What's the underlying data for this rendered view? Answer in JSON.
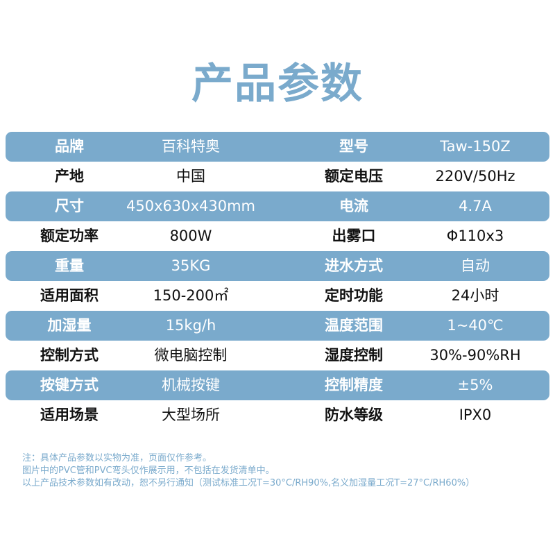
{
  "title": "产品参数",
  "rows": [
    {
      "l1": "品牌",
      "v1": "百科特奥",
      "l2": "型号",
      "v2": "Taw-150Z"
    },
    {
      "l1": "产地",
      "v1": "中国",
      "l2": "额定电压",
      "v2": "220V/50Hz"
    },
    {
      "l1": "尺寸",
      "v1": "450x630x430mm",
      "l2": "电流",
      "v2": "4.7A"
    },
    {
      "l1": "额定功率",
      "v1": "800W",
      "l2": "出雾口",
      "v2": "Φ110x3"
    },
    {
      "l1": "重量",
      "v1": "35KG",
      "l2": "进水方式",
      "v2": "自动"
    },
    {
      "l1": "适用面积",
      "v1": "150-200㎡",
      "l2": "定时功能",
      "v2": "24小时"
    },
    {
      "l1": "加湿量",
      "v1": "15kg/h",
      "l2": "温度范围",
      "v2": "1~40℃"
    },
    {
      "l1": "控制方式",
      "v1": "微电脑控制",
      "l2": "湿度控制",
      "v2": "30%-90%RH"
    },
    {
      "l1": "按键方式",
      "v1": "机械按键",
      "l2": "控制精度",
      "v2": "±5%"
    },
    {
      "l1": "适用场景",
      "v1": "大型场所",
      "l2": "防水等级",
      "v2": "IPX0"
    }
  ],
  "notes": [
    "注：具体产品参数以实物为准，页面仅作参考。",
    "图片中的PVC管和PVC弯头仅作展示用，不包括在发货清单中。",
    "以上产品技术参数如有改动，恕不另行通知（测试标准工况T=30°C/RH90%,名义加湿量工况T=27°C/RH60%）"
  ],
  "colors": {
    "accent": "#7aaacc"
  }
}
